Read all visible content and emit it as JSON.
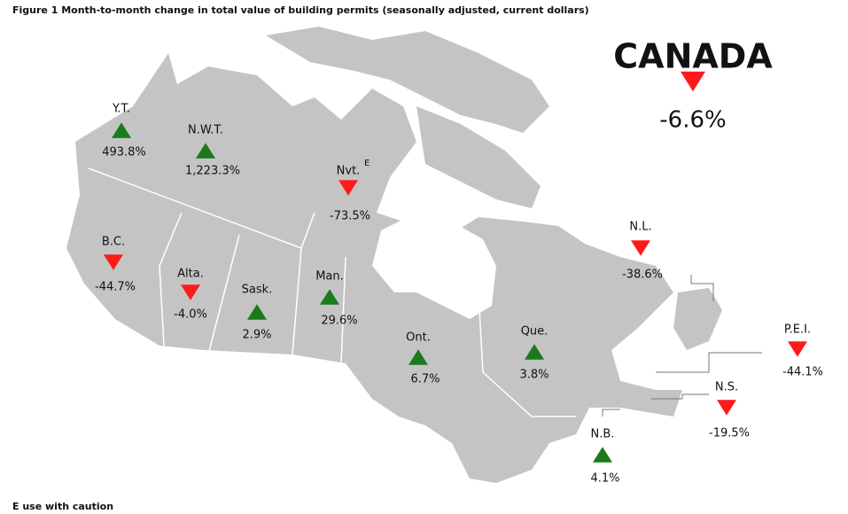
{
  "title": "Figure 1  Month-to-month change in total value of building permits (seasonally adjusted, current dollars)",
  "national": {
    "label": "CANADA",
    "change": "-6.6%"
  },
  "regions": [
    {
      "label": "Y.T.",
      "change": "493.8%"
    },
    {
      "label": "N.W.T.",
      "change": "1,223.3%"
    },
    {
      "label": "Nvt.",
      "note": "E",
      "change": "-73.5%"
    },
    {
      "label": "B.C.",
      "change": "-44.7%"
    },
    {
      "label": "Alta.",
      "change": "-4.0%"
    },
    {
      "label": "Sask.",
      "change": "2.9%"
    },
    {
      "label": "Man.",
      "change": "29.6%"
    },
    {
      "label": "Ont.",
      "change": "6.7%"
    },
    {
      "label": "Que.",
      "change": "3.8%"
    },
    {
      "label": "N.L.",
      "change": "-38.6%"
    },
    {
      "label": "P.E.I.",
      "change": "-44.1%"
    },
    {
      "label": "N.S.",
      "change": "-19.5%"
    },
    {
      "label": "N.B.",
      "change": "4.1%"
    }
  ],
  "footnote": "E use with caution",
  "up_color": "#1b7a1b",
  "down_color": "#ff1a1a",
  "map_color": "#c4c4c4"
}
